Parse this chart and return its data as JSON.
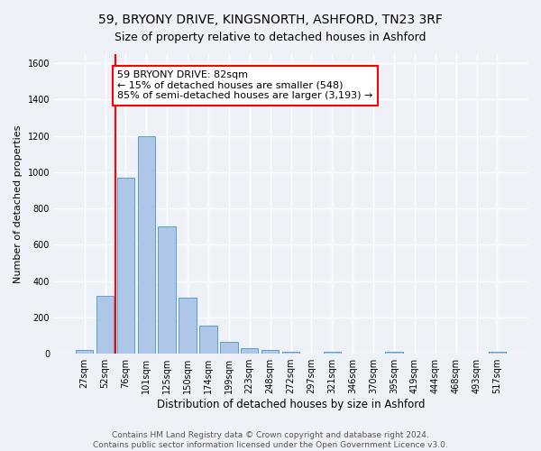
{
  "title_line1": "59, BRYONY DRIVE, KINGSNORTH, ASHFORD, TN23 3RF",
  "title_line2": "Size of property relative to detached houses in Ashford",
  "xlabel": "Distribution of detached houses by size in Ashford",
  "ylabel": "Number of detached properties",
  "categories": [
    "27sqm",
    "52sqm",
    "76sqm",
    "101sqm",
    "125sqm",
    "150sqm",
    "174sqm",
    "199sqm",
    "223sqm",
    "248sqm",
    "272sqm",
    "297sqm",
    "321sqm",
    "346sqm",
    "370sqm",
    "395sqm",
    "419sqm",
    "444sqm",
    "468sqm",
    "493sqm",
    "517sqm"
  ],
  "values": [
    20,
    320,
    970,
    1200,
    700,
    310,
    155,
    65,
    28,
    18,
    12,
    0,
    8,
    0,
    0,
    10,
    0,
    0,
    0,
    0,
    10
  ],
  "bar_color": "#aec6e8",
  "bar_edgecolor": "#5a9fd4",
  "vline_x": 1.5,
  "annotation_line1": "59 BRYONY DRIVE: 82sqm",
  "annotation_line2": "← 15% of detached houses are smaller (548)",
  "annotation_line3": "85% of semi-detached houses are larger (3,193) →",
  "annotation_box_facecolor": "white",
  "annotation_box_edgecolor": "red",
  "vline_color": "red",
  "ylim": [
    0,
    1650
  ],
  "yticks": [
    0,
    200,
    400,
    600,
    800,
    1000,
    1200,
    1400,
    1600
  ],
  "footer_line1": "Contains HM Land Registry data © Crown copyright and database right 2024.",
  "footer_line2": "Contains public sector information licensed under the Open Government Licence v3.0.",
  "bg_color": "#eef2f8",
  "plot_bg_color": "#eef2f8",
  "grid_color": "white",
  "title1_fontsize": 10,
  "title2_fontsize": 9,
  "xlabel_fontsize": 8.5,
  "ylabel_fontsize": 8,
  "tick_fontsize": 7,
  "annotation_fontsize": 8,
  "footer_fontsize": 6.5
}
